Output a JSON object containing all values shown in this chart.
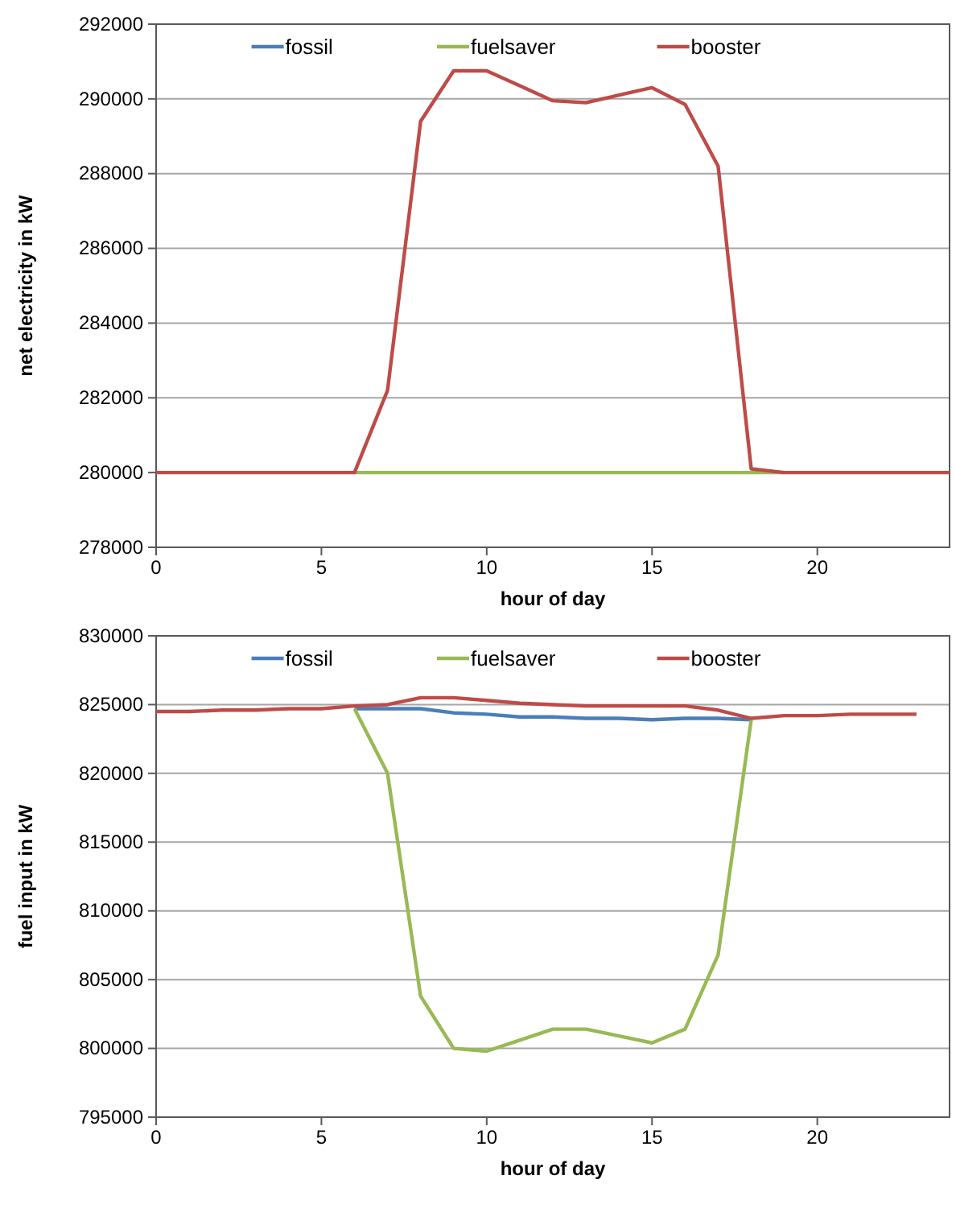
{
  "chart_data": [
    {
      "type": "line",
      "xlabel": "hour of day",
      "ylabel": "net electricity in kW",
      "x": [
        0,
        1,
        2,
        3,
        4,
        5,
        6,
        7,
        8,
        9,
        10,
        11,
        12,
        13,
        14,
        15,
        16,
        17,
        18,
        19,
        20,
        21,
        22,
        23,
        24
      ],
      "xlim": [
        0,
        24
      ],
      "xticks": [
        0,
        5,
        10,
        15,
        20
      ],
      "ylim": [
        278000,
        292000
      ],
      "yticks": [
        278000,
        280000,
        282000,
        284000,
        286000,
        288000,
        290000,
        292000
      ],
      "grid": "y",
      "legend": "top",
      "marker": "none",
      "line_style": "solid",
      "series": [
        {
          "name": "fossil",
          "color": "#4a7ebb",
          "values": [
            null,
            null,
            null,
            null,
            null,
            null,
            null,
            null,
            null,
            null,
            null,
            null,
            null,
            null,
            null,
            null,
            null,
            null,
            null,
            null,
            null,
            null,
            null,
            null,
            null
          ]
        },
        {
          "name": "fuelsaver",
          "color": "#98b954",
          "values": [
            null,
            null,
            null,
            null,
            null,
            null,
            280000,
            280000,
            280000,
            280000,
            280000,
            280000,
            280000,
            280000,
            280000,
            280000,
            280000,
            280000,
            280000,
            280000,
            null,
            null,
            null,
            null,
            null
          ]
        },
        {
          "name": "booster",
          "color": "#be4b48",
          "values": [
            280000,
            280000,
            280000,
            280000,
            280000,
            280000,
            280000,
            282200,
            289400,
            290750,
            290750,
            290350,
            289950,
            289900,
            290100,
            290300,
            289850,
            288200,
            280100,
            280000,
            280000,
            280000,
            280000,
            280000,
            280000
          ]
        }
      ]
    },
    {
      "type": "line",
      "xlabel": "hour of day",
      "ylabel": "fuel input in kW",
      "x": [
        0,
        1,
        2,
        3,
        4,
        5,
        6,
        7,
        8,
        9,
        10,
        11,
        12,
        13,
        14,
        15,
        16,
        17,
        18,
        19,
        20,
        21,
        22,
        23
      ],
      "xlim": [
        0,
        24
      ],
      "xticks": [
        0,
        5,
        10,
        15,
        20
      ],
      "ylim": [
        795000,
        830000
      ],
      "yticks": [
        795000,
        800000,
        805000,
        810000,
        815000,
        820000,
        825000,
        830000
      ],
      "grid": "y",
      "legend": "top",
      "marker": "none",
      "line_style": "solid",
      "series": [
        {
          "name": "fossil",
          "color": "#4a7ebb",
          "values": [
            null,
            null,
            null,
            null,
            null,
            null,
            824700,
            824700,
            824700,
            824400,
            824300,
            824100,
            824100,
            824000,
            824000,
            823900,
            824000,
            824000,
            823900,
            null,
            null,
            null,
            null,
            null
          ]
        },
        {
          "name": "fuelsaver",
          "color": "#98b954",
          "values": [
            null,
            null,
            null,
            null,
            null,
            null,
            824700,
            820000,
            803800,
            800000,
            799800,
            800600,
            801400,
            801400,
            800900,
            800400,
            801400,
            806800,
            823900,
            null,
            null,
            null,
            null,
            null
          ]
        },
        {
          "name": "booster",
          "color": "#be4b48",
          "values": [
            824500,
            824500,
            824600,
            824600,
            824700,
            824700,
            824900,
            825000,
            825500,
            825500,
            825300,
            825100,
            825000,
            824900,
            824900,
            824900,
            824900,
            824600,
            824000,
            824200,
            824200,
            824300,
            824300,
            824300
          ]
        }
      ]
    }
  ]
}
